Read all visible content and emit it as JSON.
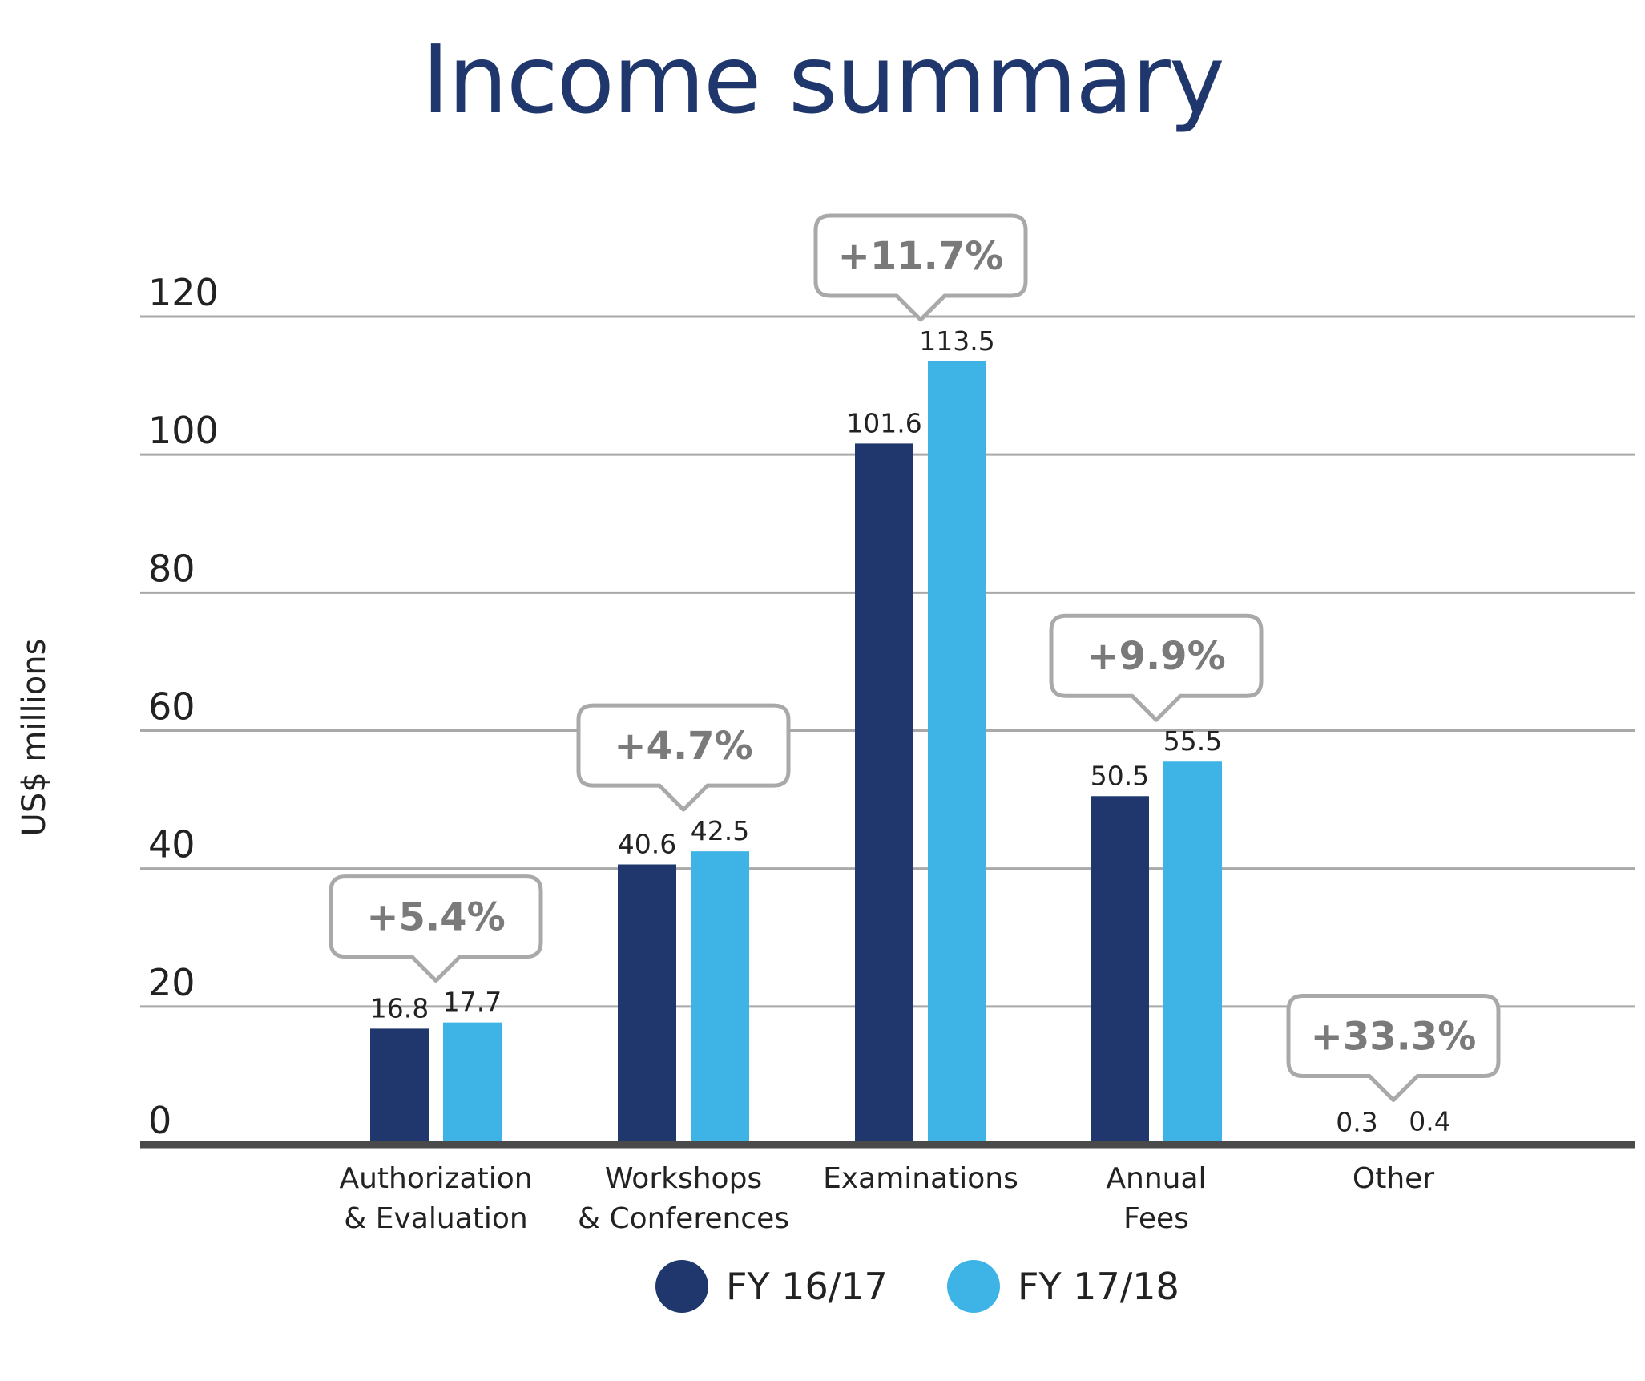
{
  "chart_data": {
    "type": "bar",
    "title": "Income summary",
    "ylabel": "US$ millions",
    "ylim": [
      0,
      120
    ],
    "yticks": [
      0,
      20,
      40,
      60,
      80,
      100,
      120
    ],
    "grid": true,
    "legend_position": "bottom",
    "categories": [
      [
        "Authorization",
        "& Evaluation"
      ],
      [
        "Workshops",
        "& Conferences"
      ],
      [
        "Examinations"
      ],
      [
        "Annual",
        "Fees"
      ],
      [
        "Other"
      ]
    ],
    "series": [
      {
        "name": "FY 16/17",
        "color": "#1f376d",
        "values": [
          16.8,
          40.6,
          101.6,
          50.5,
          0.3
        ],
        "labels": [
          "16.8",
          "40.6",
          "101.6",
          "50.5",
          "0.3"
        ]
      },
      {
        "name": "FY 17/18",
        "color": "#3db4e5",
        "values": [
          17.7,
          42.5,
          113.5,
          55.5,
          0.4
        ],
        "labels": [
          "17.7",
          "42.5",
          "113.5",
          "55.5",
          "0.4"
        ]
      }
    ],
    "annotations": [
      "+5.4%",
      "+4.7%",
      "+11.7%",
      "+9.9%",
      "+33.3%"
    ]
  }
}
